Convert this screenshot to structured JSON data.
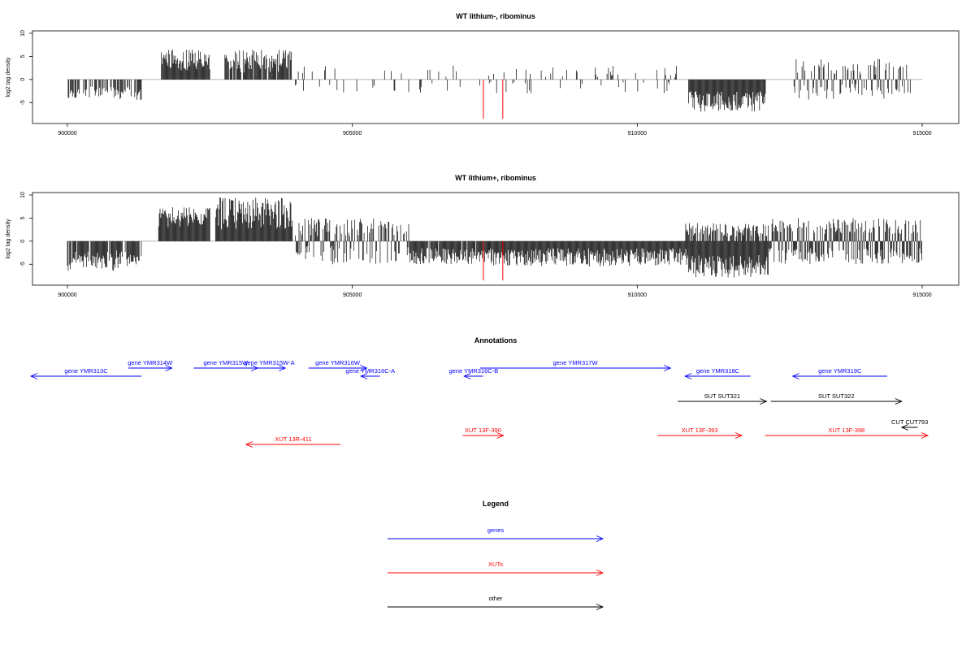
{
  "chart_data": [
    {
      "type": "bar",
      "title": "WT lithium-, ribominus",
      "ylabel": "log2 tag density",
      "xlim": [
        900000,
        915000
      ],
      "ylim": [
        -9,
        10
      ],
      "x_ticks": [
        "900000",
        "905000",
        "910000",
        "915000"
      ],
      "y_ticks": [
        "10",
        "5",
        "0",
        "-5"
      ],
      "grid": false,
      "segments": [
        {
          "from": 900000,
          "to": 901300,
          "sign": "down",
          "min": 1.5,
          "max": 4.5,
          "density": 0.6
        },
        {
          "from": 901650,
          "to": 902500,
          "sign": "up",
          "min": 2,
          "max": 6.5,
          "density": 1.0
        },
        {
          "from": 902750,
          "to": 903950,
          "sign": "up",
          "min": 1.5,
          "max": 6.5,
          "density": 0.85
        },
        {
          "from": 904000,
          "to": 906800,
          "sign": "mixed",
          "min": 0.5,
          "max": 3,
          "density": 0.1
        },
        {
          "from": 906800,
          "to": 910900,
          "sign": "mixed",
          "min": 0.5,
          "max": 3,
          "density": 0.2
        },
        {
          "from": 910900,
          "to": 912250,
          "sign": "down",
          "min": 2.5,
          "max": 7,
          "density": 1.0
        },
        {
          "from": 912750,
          "to": 914800,
          "sign": "mixed",
          "min": 1,
          "max": 4.5,
          "density": 0.6
        }
      ],
      "highlights": [
        {
          "x": 907300,
          "value": -8.5,
          "color": "#ff0000"
        },
        {
          "x": 907640,
          "value": -8.5,
          "color": "#ff0000"
        }
      ]
    },
    {
      "type": "bar",
      "title": "WT lithium+, ribominus",
      "ylabel": "log2 tag density",
      "xlim": [
        900000,
        915000
      ],
      "ylim": [
        -9,
        10
      ],
      "x_ticks": [
        "900000",
        "905000",
        "910000",
        "915000"
      ],
      "y_ticks": [
        "10",
        "5",
        "0",
        "-5"
      ],
      "grid": false,
      "segments": [
        {
          "from": 900000,
          "to": 901300,
          "sign": "down",
          "min": 2,
          "max": 6.5,
          "density": 0.9
        },
        {
          "from": 901600,
          "to": 902500,
          "sign": "up",
          "min": 3,
          "max": 7.5,
          "density": 1.0
        },
        {
          "from": 902600,
          "to": 903950,
          "sign": "up",
          "min": 2.5,
          "max": 9.5,
          "density": 1.0
        },
        {
          "from": 904000,
          "to": 906000,
          "sign": "mixed",
          "min": 1,
          "max": 5,
          "density": 0.8
        },
        {
          "from": 906000,
          "to": 907400,
          "sign": "down",
          "min": 1.5,
          "max": 5,
          "density": 0.9
        },
        {
          "from": 907400,
          "to": 910900,
          "sign": "down",
          "min": 1.5,
          "max": 5.5,
          "density": 1.0
        },
        {
          "from": 910900,
          "to": 912300,
          "sign": "down",
          "min": 3,
          "max": 8,
          "density": 1.0
        },
        {
          "from": 910850,
          "to": 912300,
          "sign": "up",
          "min": 1,
          "max": 4,
          "density": 0.7
        },
        {
          "from": 912300,
          "to": 915000,
          "sign": "mixed",
          "min": 1.5,
          "max": 5,
          "density": 1.0
        }
      ],
      "highlights": [
        {
          "x": 907300,
          "value": -8.5,
          "color": "#ff0000"
        },
        {
          "x": 907640,
          "value": -8.5,
          "color": "#ff0000"
        }
      ]
    }
  ],
  "annotations": {
    "title": "Annotations",
    "xlim": [
      900000,
      915000
    ],
    "features": [
      {
        "label": "gene YMR313C",
        "type": "gene",
        "strand": "-",
        "start": 898350,
        "end": 902150,
        "row": 1
      },
      {
        "label": "gene YMR314W",
        "type": "gene",
        "strand": "+",
        "start": 901700,
        "end": 903200,
        "row": 0
      },
      {
        "label": "gene YMR315W",
        "type": "gene",
        "strand": "+",
        "start": 903950,
        "end": 906150,
        "row": 0
      },
      {
        "label": "gene YMR315W-A",
        "type": "gene",
        "strand": "+",
        "start": 906000,
        "end": 907100,
        "row": 0
      },
      {
        "label": "gene YMR316W",
        "type": "gene",
        "strand": "+",
        "start": 907900,
        "end": 909900,
        "row": 0
      },
      {
        "label": "gene YMR316C-A",
        "type": "gene",
        "strand": "-",
        "start": 909700,
        "end": 910350,
        "row": 1
      },
      {
        "label": "gene YMR316C-B",
        "type": "gene",
        "strand": "-",
        "start": 913250,
        "end": 913900,
        "row": 1
      },
      {
        "label": "gene YMR317W",
        "type": "gene",
        "strand": "+",
        "start": 913800,
        "end": 920350,
        "row": 0
      },
      {
        "label": "gene YMR318C",
        "type": "gene",
        "strand": "-",
        "start": 920850,
        "end": 923100,
        "row": 1
      },
      {
        "label": "gene YMR319C",
        "type": "gene",
        "strand": "-",
        "start": 924550,
        "end": 927800,
        "row": 1
      },
      {
        "label": "SUT SUT321",
        "type": "other",
        "strand": "+",
        "start": 920600,
        "end": 923650,
        "row": 2
      },
      {
        "label": "SUT SUT322",
        "type": "other",
        "strand": "+",
        "start": 923800,
        "end": 928300,
        "row": 2
      },
      {
        "label": "CUT CUT793",
        "type": "other",
        "strand": "-",
        "start": 928300,
        "end": 928850,
        "row": 3
      },
      {
        "label": "XUT 13R-411",
        "type": "xut",
        "strand": "-",
        "start": 905750,
        "end": 909000,
        "row": 5
      },
      {
        "label": "XUT 13F-390",
        "type": "xut",
        "strand": "+",
        "start": 913200,
        "end": 914600,
        "row": 4
      },
      {
        "label": "XUT 13F-393",
        "type": "xut",
        "strand": "+",
        "start": 919900,
        "end": 922800,
        "row": 4
      },
      {
        "label": "XUT 13F-398",
        "type": "xut",
        "strand": "+",
        "start": 923600,
        "end": 929200,
        "row": 4
      }
    ]
  },
  "legend": {
    "title": "Legend",
    "items": [
      {
        "label": "genes",
        "color": "#0000ff"
      },
      {
        "label": "XUTs",
        "color": "#ff0000"
      },
      {
        "label": "other",
        "color": "#000000"
      }
    ]
  },
  "colors": {
    "gene": "#0000ff",
    "xut": "#ff0000",
    "other": "#000000",
    "bar": "#000000",
    "axis": "#000000"
  }
}
